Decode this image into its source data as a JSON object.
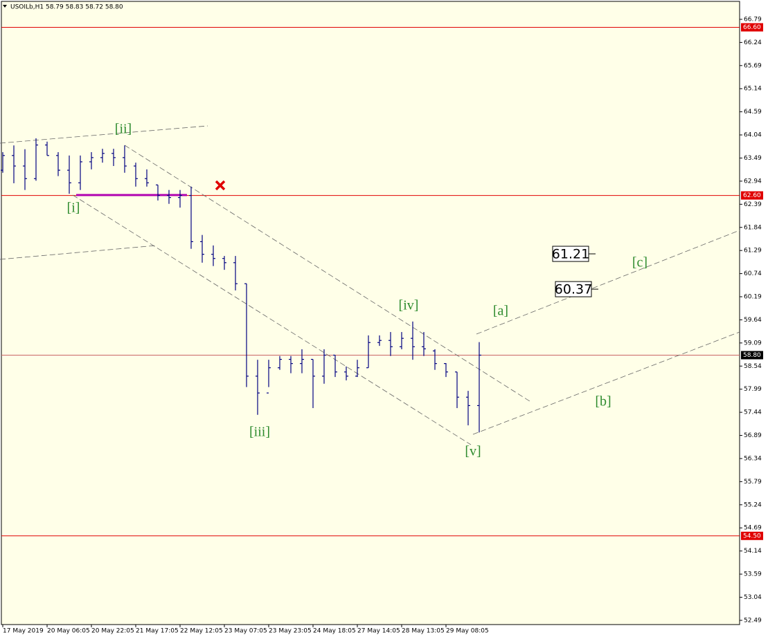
{
  "chart_data": {
    "type": "ohlc",
    "title": "USOILb,H1  58.79 58.83 58.72 58.80",
    "categories": [
      "17 May 2019",
      null,
      null,
      null,
      "20 May 06:05",
      null,
      null,
      null,
      "20 May 22:05",
      null,
      null,
      null,
      "21 May 17:05",
      null,
      null,
      null,
      "22 May 12:05",
      null,
      null,
      null,
      "23 May 07:05",
      null,
      null,
      null,
      "23 May 23:05",
      null,
      null,
      null,
      "24 May 18:05",
      null,
      null,
      null,
      "27 May 14:05",
      null,
      null,
      null,
      "28 May 13:05",
      null,
      null,
      null,
      "29 May 08:05",
      null,
      null,
      null
    ],
    "open": [
      63.2,
      63.55,
      63.3,
      63.0,
      63.8,
      63.55,
      63.2,
      62.9,
      63.4,
      63.5,
      63.6,
      63.5,
      63.3,
      63.0,
      62.85,
      62.6,
      62.55,
      62.6,
      61.5,
      61.2,
      61.1,
      61.0,
      60.5,
      58.3,
      57.9,
      58.5,
      58.7,
      58.6,
      58.7,
      58.3,
      58.8,
      58.4,
      58.3,
      58.5,
      59.1,
      59.15,
      59.0,
      59.2,
      59.0,
      58.9,
      58.6,
      58.4,
      57.8,
      57.6
    ],
    "high": [
      63.63,
      63.79,
      63.7,
      63.96,
      63.88,
      63.63,
      63.55,
      63.55,
      63.63,
      63.71,
      63.71,
      63.79,
      63.38,
      63.22,
      62.85,
      62.73,
      62.73,
      62.81,
      61.66,
      61.41,
      61.16,
      61.16,
      60.5,
      58.69,
      58.69,
      58.78,
      58.78,
      58.94,
      58.7,
      58.94,
      58.8,
      58.53,
      58.69,
      59.27,
      59.27,
      59.35,
      59.35,
      59.6,
      59.35,
      58.94,
      58.61,
      58.4,
      57.95,
      59.11
    ],
    "low": [
      63.14,
      62.89,
      62.73,
      62.95,
      63.55,
      63.06,
      62.64,
      62.73,
      63.22,
      63.38,
      63.3,
      63.14,
      62.81,
      62.81,
      62.48,
      62.4,
      62.31,
      61.33,
      61.0,
      60.92,
      60.83,
      60.34,
      58.04,
      57.38,
      58.04,
      58.45,
      58.37,
      58.37,
      57.54,
      58.12,
      58.28,
      58.2,
      58.28,
      58.5,
      59.02,
      58.78,
      58.94,
      58.69,
      58.78,
      58.45,
      58.28,
      57.54,
      57.13,
      56.96
    ],
    "close": [
      63.55,
      63.3,
      63.0,
      63.8,
      63.55,
      63.2,
      62.9,
      63.4,
      63.5,
      63.6,
      63.5,
      63.3,
      63.0,
      62.9,
      62.6,
      62.55,
      62.6,
      61.5,
      61.2,
      61.1,
      61.0,
      60.5,
      58.3,
      57.9,
      58.5,
      58.7,
      58.6,
      58.7,
      58.3,
      58.8,
      58.4,
      58.3,
      58.5,
      59.1,
      59.15,
      59.0,
      59.2,
      59.0,
      58.95,
      58.6,
      58.4,
      57.8,
      57.6,
      58.8
    ],
    "color": "#000080",
    "ylim": [
      52.39,
      67.25
    ],
    "yticks": [
      66.79,
      66.24,
      65.69,
      65.14,
      64.59,
      64.04,
      63.49,
      62.94,
      62.39,
      61.84,
      61.29,
      60.74,
      60.19,
      59.64,
      59.09,
      58.54,
      57.99,
      57.44,
      56.89,
      56.34,
      55.79,
      55.24,
      54.69,
      54.14,
      53.59,
      53.04,
      52.49
    ],
    "levels": [
      {
        "value": 66.6,
        "label": "66.60"
      },
      {
        "value": 62.6,
        "label": "62.60"
      },
      {
        "value": 54.5,
        "label": "54.50"
      }
    ],
    "level_color": "#e00000",
    "current_price": {
      "value": 58.8,
      "label": "58.80"
    },
    "waves": [
      "[i]",
      "[ii]",
      "[iii]",
      "[iv]",
      "[v]",
      "[a]",
      "[b]",
      "[c]"
    ],
    "targets": [
      61.21,
      60.37
    ]
  }
}
